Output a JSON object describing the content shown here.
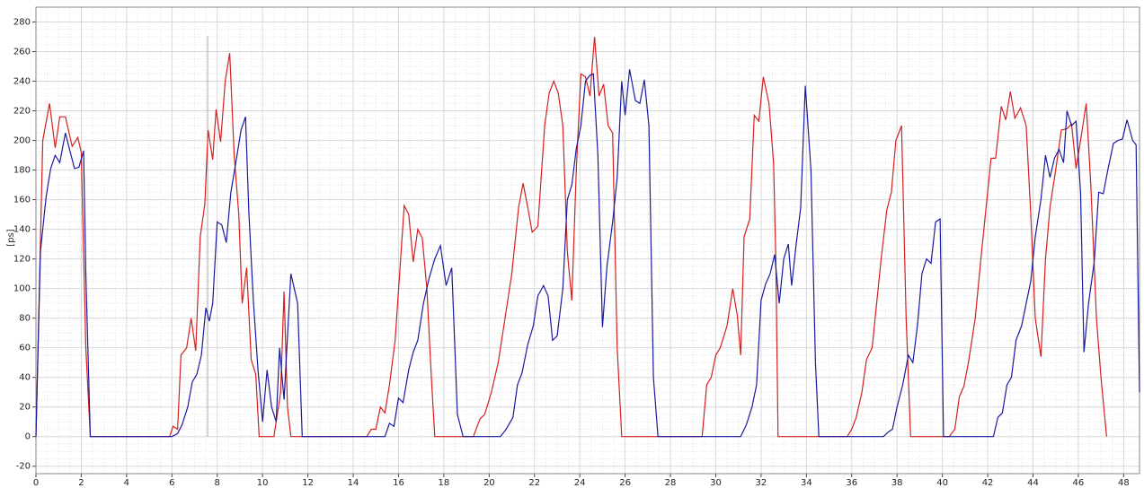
{
  "chart_data": {
    "type": "line",
    "ylabel": "[ps]",
    "xlim": [
      0,
      48.7
    ],
    "ylim": [
      -25,
      290
    ],
    "xticks": [
      0,
      2,
      4,
      6,
      8,
      10,
      12,
      14,
      16,
      18,
      20,
      22,
      24,
      26,
      28,
      30,
      32,
      34,
      36,
      38,
      40,
      42,
      44,
      46,
      48
    ],
    "yticks": [
      -20,
      0,
      20,
      40,
      60,
      80,
      100,
      120,
      140,
      160,
      180,
      200,
      220,
      240,
      260,
      280
    ],
    "grid": true,
    "series": [
      {
        "color": "#d42020",
        "x": [
          0,
          0.3,
          0.6,
          0.85,
          1.05,
          1.3,
          1.6,
          1.85,
          2.0,
          2.2,
          2.4,
          5.9,
          6.05,
          6.25,
          6.4,
          6.65,
          6.85,
          7.05,
          7.25,
          7.45,
          7.6,
          7.8,
          7.95,
          8.15,
          8.35,
          8.55,
          8.75,
          8.95,
          9.1,
          9.3,
          9.5,
          9.7,
          9.85,
          10.5,
          10.8,
          10.95,
          11.1,
          11.25,
          14.6,
          14.8,
          15.0,
          15.2,
          15.4,
          15.6,
          15.85,
          16.05,
          16.25,
          16.45,
          16.65,
          16.85,
          17.05,
          17.25,
          17.45,
          17.6,
          19.3,
          19.6,
          19.8,
          20.1,
          20.4,
          20.7,
          21.0,
          21.3,
          21.5,
          21.7,
          21.9,
          22.15,
          22.45,
          22.65,
          22.85,
          23.05,
          23.25,
          23.45,
          23.65,
          23.85,
          24.05,
          24.25,
          24.45,
          24.65,
          24.85,
          25.05,
          25.25,
          25.45,
          25.65,
          25.85,
          29.4,
          29.6,
          29.8,
          30.0,
          30.2,
          30.5,
          30.75,
          30.95,
          31.1,
          31.25,
          31.5,
          31.7,
          31.9,
          32.1,
          32.35,
          32.55,
          32.65,
          32.75,
          35.8,
          36.0,
          36.2,
          36.45,
          36.65,
          36.9,
          37.1,
          37.3,
          37.55,
          37.75,
          37.95,
          38.2,
          38.4,
          38.6,
          40.3,
          40.55,
          40.75,
          40.95,
          41.15,
          41.45,
          41.7,
          41.9,
          42.15,
          42.35,
          42.6,
          42.8,
          43.0,
          43.2,
          43.45,
          43.7,
          43.9,
          44.1,
          44.35,
          44.55,
          44.75,
          45.0,
          45.25,
          45.5,
          45.7,
          45.9,
          46.1,
          46.35,
          46.55,
          46.8,
          47.0,
          47.25
        ],
        "values": [
          0,
          200,
          225,
          195,
          216,
          216,
          196,
          202,
          192,
          60,
          0,
          0,
          7,
          5,
          55,
          60,
          80,
          58,
          135,
          157,
          207,
          187,
          221,
          199,
          240,
          259,
          190,
          150,
          90,
          114,
          52,
          42,
          0,
          0,
          30,
          98,
          20,
          0,
          0,
          5,
          5,
          20,
          16,
          35,
          65,
          110,
          156,
          150,
          118,
          140,
          134,
          100,
          40,
          0,
          0,
          12,
          15,
          30,
          50,
          80,
          110,
          155,
          171,
          155,
          138,
          142,
          210,
          232,
          240,
          232,
          210,
          125,
          92,
          182,
          245,
          243,
          230,
          270,
          230,
          238,
          210,
          205,
          60,
          0,
          0,
          35,
          40,
          55,
          60,
          75,
          100,
          82,
          55,
          135,
          147,
          217,
          213,
          243,
          225,
          185,
          120,
          0,
          0,
          5,
          13,
          30,
          52,
          60,
          90,
          120,
          153,
          165,
          200,
          210,
          80,
          0,
          0,
          5,
          27,
          34,
          50,
          80,
          120,
          150,
          188,
          188,
          223,
          214,
          233,
          215,
          222,
          210,
          150,
          80,
          54,
          120,
          155,
          180,
          207,
          208,
          211,
          181,
          200,
          225,
          170,
          80,
          40,
          0
        ]
      },
      {
        "color": "#1a1aa0",
        "x": [
          0,
          0.2,
          0.45,
          0.65,
          0.85,
          1.05,
          1.3,
          1.5,
          1.7,
          1.9,
          2.1,
          2.2,
          2.4,
          6.0,
          6.25,
          6.45,
          6.7,
          6.9,
          7.1,
          7.3,
          7.5,
          7.65,
          7.8,
          8.0,
          8.2,
          8.4,
          8.6,
          8.85,
          9.05,
          9.25,
          9.4,
          9.6,
          9.8,
          10.0,
          10.2,
          10.4,
          10.6,
          10.75,
          10.95,
          11.25,
          11.55,
          11.75,
          15.4,
          15.6,
          15.8,
          16.0,
          16.2,
          16.45,
          16.65,
          16.85,
          17.1,
          17.35,
          17.6,
          17.85,
          18.1,
          18.35,
          18.6,
          18.85,
          20.5,
          20.75,
          21.05,
          21.25,
          21.45,
          21.7,
          21.95,
          22.15,
          22.4,
          22.6,
          22.8,
          23.0,
          23.25,
          23.45,
          23.65,
          23.85,
          24.05,
          24.25,
          24.45,
          24.6,
          24.8,
          25.0,
          25.2,
          25.45,
          25.65,
          25.85,
          26.0,
          26.2,
          26.45,
          26.65,
          26.85,
          27.05,
          27.25,
          27.45,
          31.1,
          31.35,
          31.6,
          31.8,
          32.0,
          32.2,
          32.4,
          32.6,
          32.8,
          33.0,
          33.2,
          33.35,
          33.55,
          33.75,
          33.95,
          34.2,
          34.4,
          34.55,
          37.4,
          37.6,
          37.8,
          38.0,
          38.25,
          38.5,
          38.7,
          38.9,
          39.1,
          39.3,
          39.5,
          39.7,
          39.9,
          40.05,
          42.25,
          42.45,
          42.65,
          42.85,
          43.05,
          43.25,
          43.5,
          43.7,
          43.9,
          44.1,
          44.35,
          44.55,
          44.75,
          44.95,
          45.15,
          45.35,
          45.5,
          45.7,
          45.9,
          46.1,
          46.25,
          46.45,
          46.7,
          46.9,
          47.1,
          47.3,
          47.55,
          47.75,
          47.95,
          48.15,
          48.4,
          48.55,
          48.7
        ],
        "values": [
          0,
          125,
          162,
          181,
          190,
          185,
          205,
          193,
          181,
          182,
          193,
          110,
          0,
          0,
          2,
          8,
          20,
          37,
          42,
          55,
          87,
          78,
          90,
          145,
          143,
          131,
          165,
          188,
          207,
          216,
          150,
          90,
          45,
          10,
          45,
          20,
          10,
          60,
          25,
          110,
          90,
          0,
          0,
          9,
          7,
          26,
          23,
          45,
          57,
          65,
          90,
          107,
          120,
          129,
          102,
          114,
          15,
          0,
          0,
          5,
          13,
          35,
          43,
          62,
          75,
          95,
          102,
          95,
          65,
          68,
          100,
          160,
          170,
          195,
          210,
          240,
          244,
          245,
          190,
          74,
          115,
          145,
          175,
          240,
          217,
          248,
          227,
          225,
          241,
          210,
          40,
          0,
          0,
          8,
          20,
          35,
          92,
          103,
          110,
          123,
          90,
          120,
          130,
          102,
          130,
          155,
          237,
          180,
          50,
          0,
          0,
          3,
          5,
          20,
          35,
          55,
          50,
          75,
          110,
          120,
          117,
          145,
          147,
          0,
          0,
          13,
          16,
          35,
          40,
          65,
          75,
          90,
          105,
          135,
          160,
          190,
          175,
          188,
          194,
          185,
          220,
          210,
          213,
          165,
          57,
          90,
          118,
          165,
          164,
          180,
          198,
          200,
          201,
          214,
          200,
          197,
          30
        ]
      }
    ]
  }
}
